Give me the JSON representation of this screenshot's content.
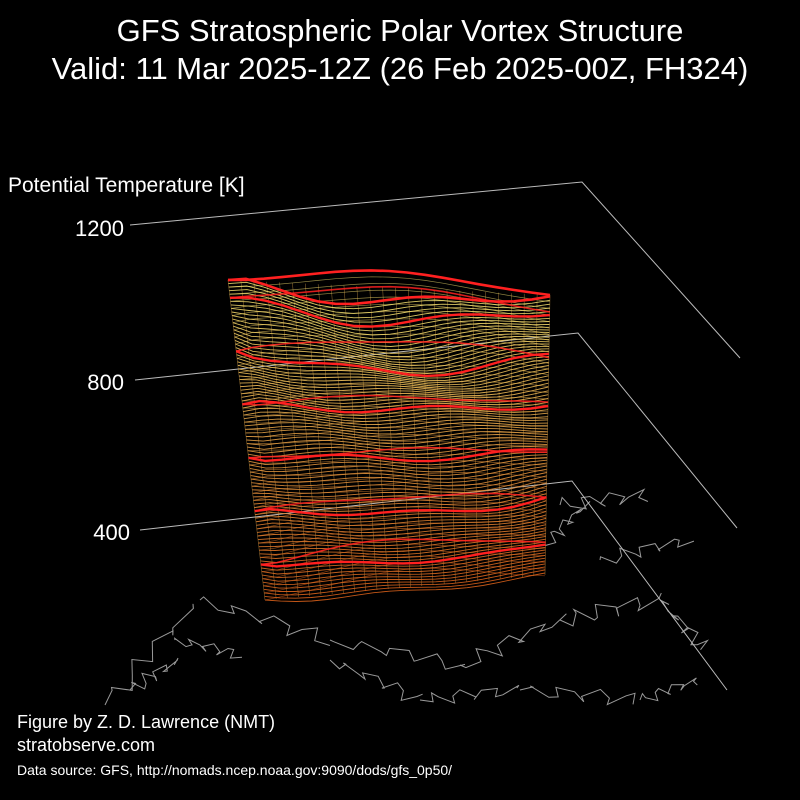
{
  "title": {
    "line1": "GFS Stratospheric Polar Vortex Structure",
    "line2": "Valid: 11 Mar 2025-12Z  (26 Feb 2025-00Z, FH324)"
  },
  "chart_data": {
    "type": "3d-isosurface",
    "zlabel": "Potential Temperature [K]",
    "ztick_labels": [
      "1200",
      "800",
      "400"
    ],
    "colors": {
      "background": "#000000",
      "contour_low": "#d9601a",
      "contour_high": "#f2e070",
      "highlight_contour": "#ff2020",
      "coastlines": "#9a9a9a",
      "axes": "#bbbbbb"
    }
  },
  "credits": {
    "author": "Figure by Z. D. Lawrence (NMT)",
    "site": "stratobserve.com",
    "source": "Data source: GFS, http://nomads.ncep.noaa.gov:9090/dods/gfs_0p50/"
  }
}
